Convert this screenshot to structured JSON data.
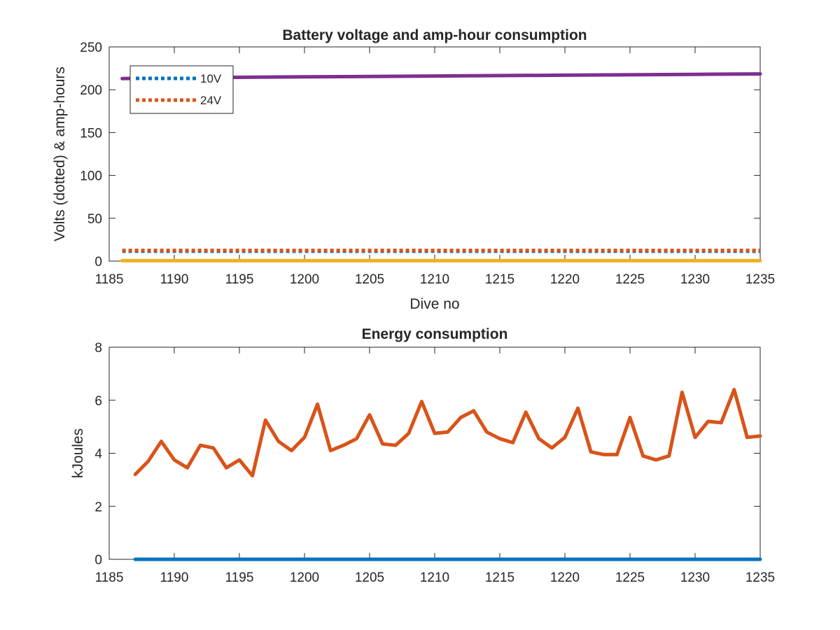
{
  "chart_data": [
    {
      "type": "line",
      "title": "Battery voltage and amp-hour consumption",
      "xlabel": "Dive no",
      "ylabel": "Volts (dotted) & amp-hours",
      "xlim": [
        1185,
        1235
      ],
      "ylim": [
        0,
        250
      ],
      "xticks": [
        1185,
        1190,
        1195,
        1200,
        1205,
        1210,
        1215,
        1220,
        1225,
        1230,
        1235
      ],
      "yticks": [
        0,
        50,
        100,
        150,
        200,
        250
      ],
      "grid": false,
      "legend_position": "top-left",
      "series": [
        {
          "name": "10V",
          "style": "dotted",
          "color": "#0072bd",
          "x": [
            1186,
            1235
          ],
          "y": [
            11.5,
            11.5
          ]
        },
        {
          "name": "24V",
          "style": "dotted",
          "color": "#d95319",
          "x": [
            1186,
            1235
          ],
          "y": [
            12.5,
            12.5
          ]
        },
        {
          "style": "solid",
          "color": "#edb120",
          "x": [
            1186,
            1235
          ],
          "y": [
            0.5,
            0.5
          ]
        },
        {
          "style": "solid",
          "color": "#7e2f8e",
          "x": [
            1186,
            1190,
            1200,
            1210,
            1220,
            1230,
            1235
          ],
          "y": [
            213,
            214,
            215,
            216,
            217,
            218,
            218.5
          ]
        }
      ]
    },
    {
      "type": "line",
      "title": "Energy consumption",
      "xlabel": "",
      "ylabel": "kJoules",
      "xlim": [
        1185,
        1235
      ],
      "ylim": [
        0,
        8
      ],
      "xticks": [
        1185,
        1190,
        1195,
        1200,
        1205,
        1210,
        1215,
        1220,
        1225,
        1230,
        1235
      ],
      "yticks": [
        0,
        2,
        4,
        6,
        8
      ],
      "grid": false,
      "series": [
        {
          "style": "solid",
          "color": "#0072bd",
          "x": [
            1187,
            1235
          ],
          "y": [
            0,
            0
          ]
        },
        {
          "style": "solid",
          "color": "#d95319",
          "x": [
            1187,
            1188,
            1189,
            1190,
            1191,
            1192,
            1193,
            1194,
            1195,
            1196,
            1197,
            1198,
            1199,
            1200,
            1201,
            1202,
            1203,
            1204,
            1205,
            1206,
            1207,
            1208,
            1209,
            1210,
            1211,
            1212,
            1213,
            1214,
            1215,
            1216,
            1217,
            1218,
            1219,
            1220,
            1221,
            1222,
            1223,
            1224,
            1225,
            1226,
            1227,
            1228,
            1229,
            1230,
            1231,
            1232,
            1233,
            1234,
            1235
          ],
          "y": [
            3.2,
            3.7,
            4.45,
            3.75,
            3.45,
            4.3,
            4.2,
            3.45,
            3.75,
            3.15,
            5.25,
            4.45,
            4.1,
            4.6,
            5.85,
            4.1,
            4.3,
            4.55,
            5.45,
            4.35,
            4.3,
            4.75,
            5.95,
            4.75,
            4.8,
            5.35,
            5.6,
            4.8,
            4.55,
            4.4,
            5.55,
            4.55,
            4.2,
            4.6,
            5.7,
            4.05,
            3.95,
            3.95,
            5.35,
            3.9,
            3.75,
            3.9,
            6.3,
            4.6,
            5.2,
            5.15,
            6.4,
            4.6,
            4.65
          ]
        }
      ]
    }
  ]
}
